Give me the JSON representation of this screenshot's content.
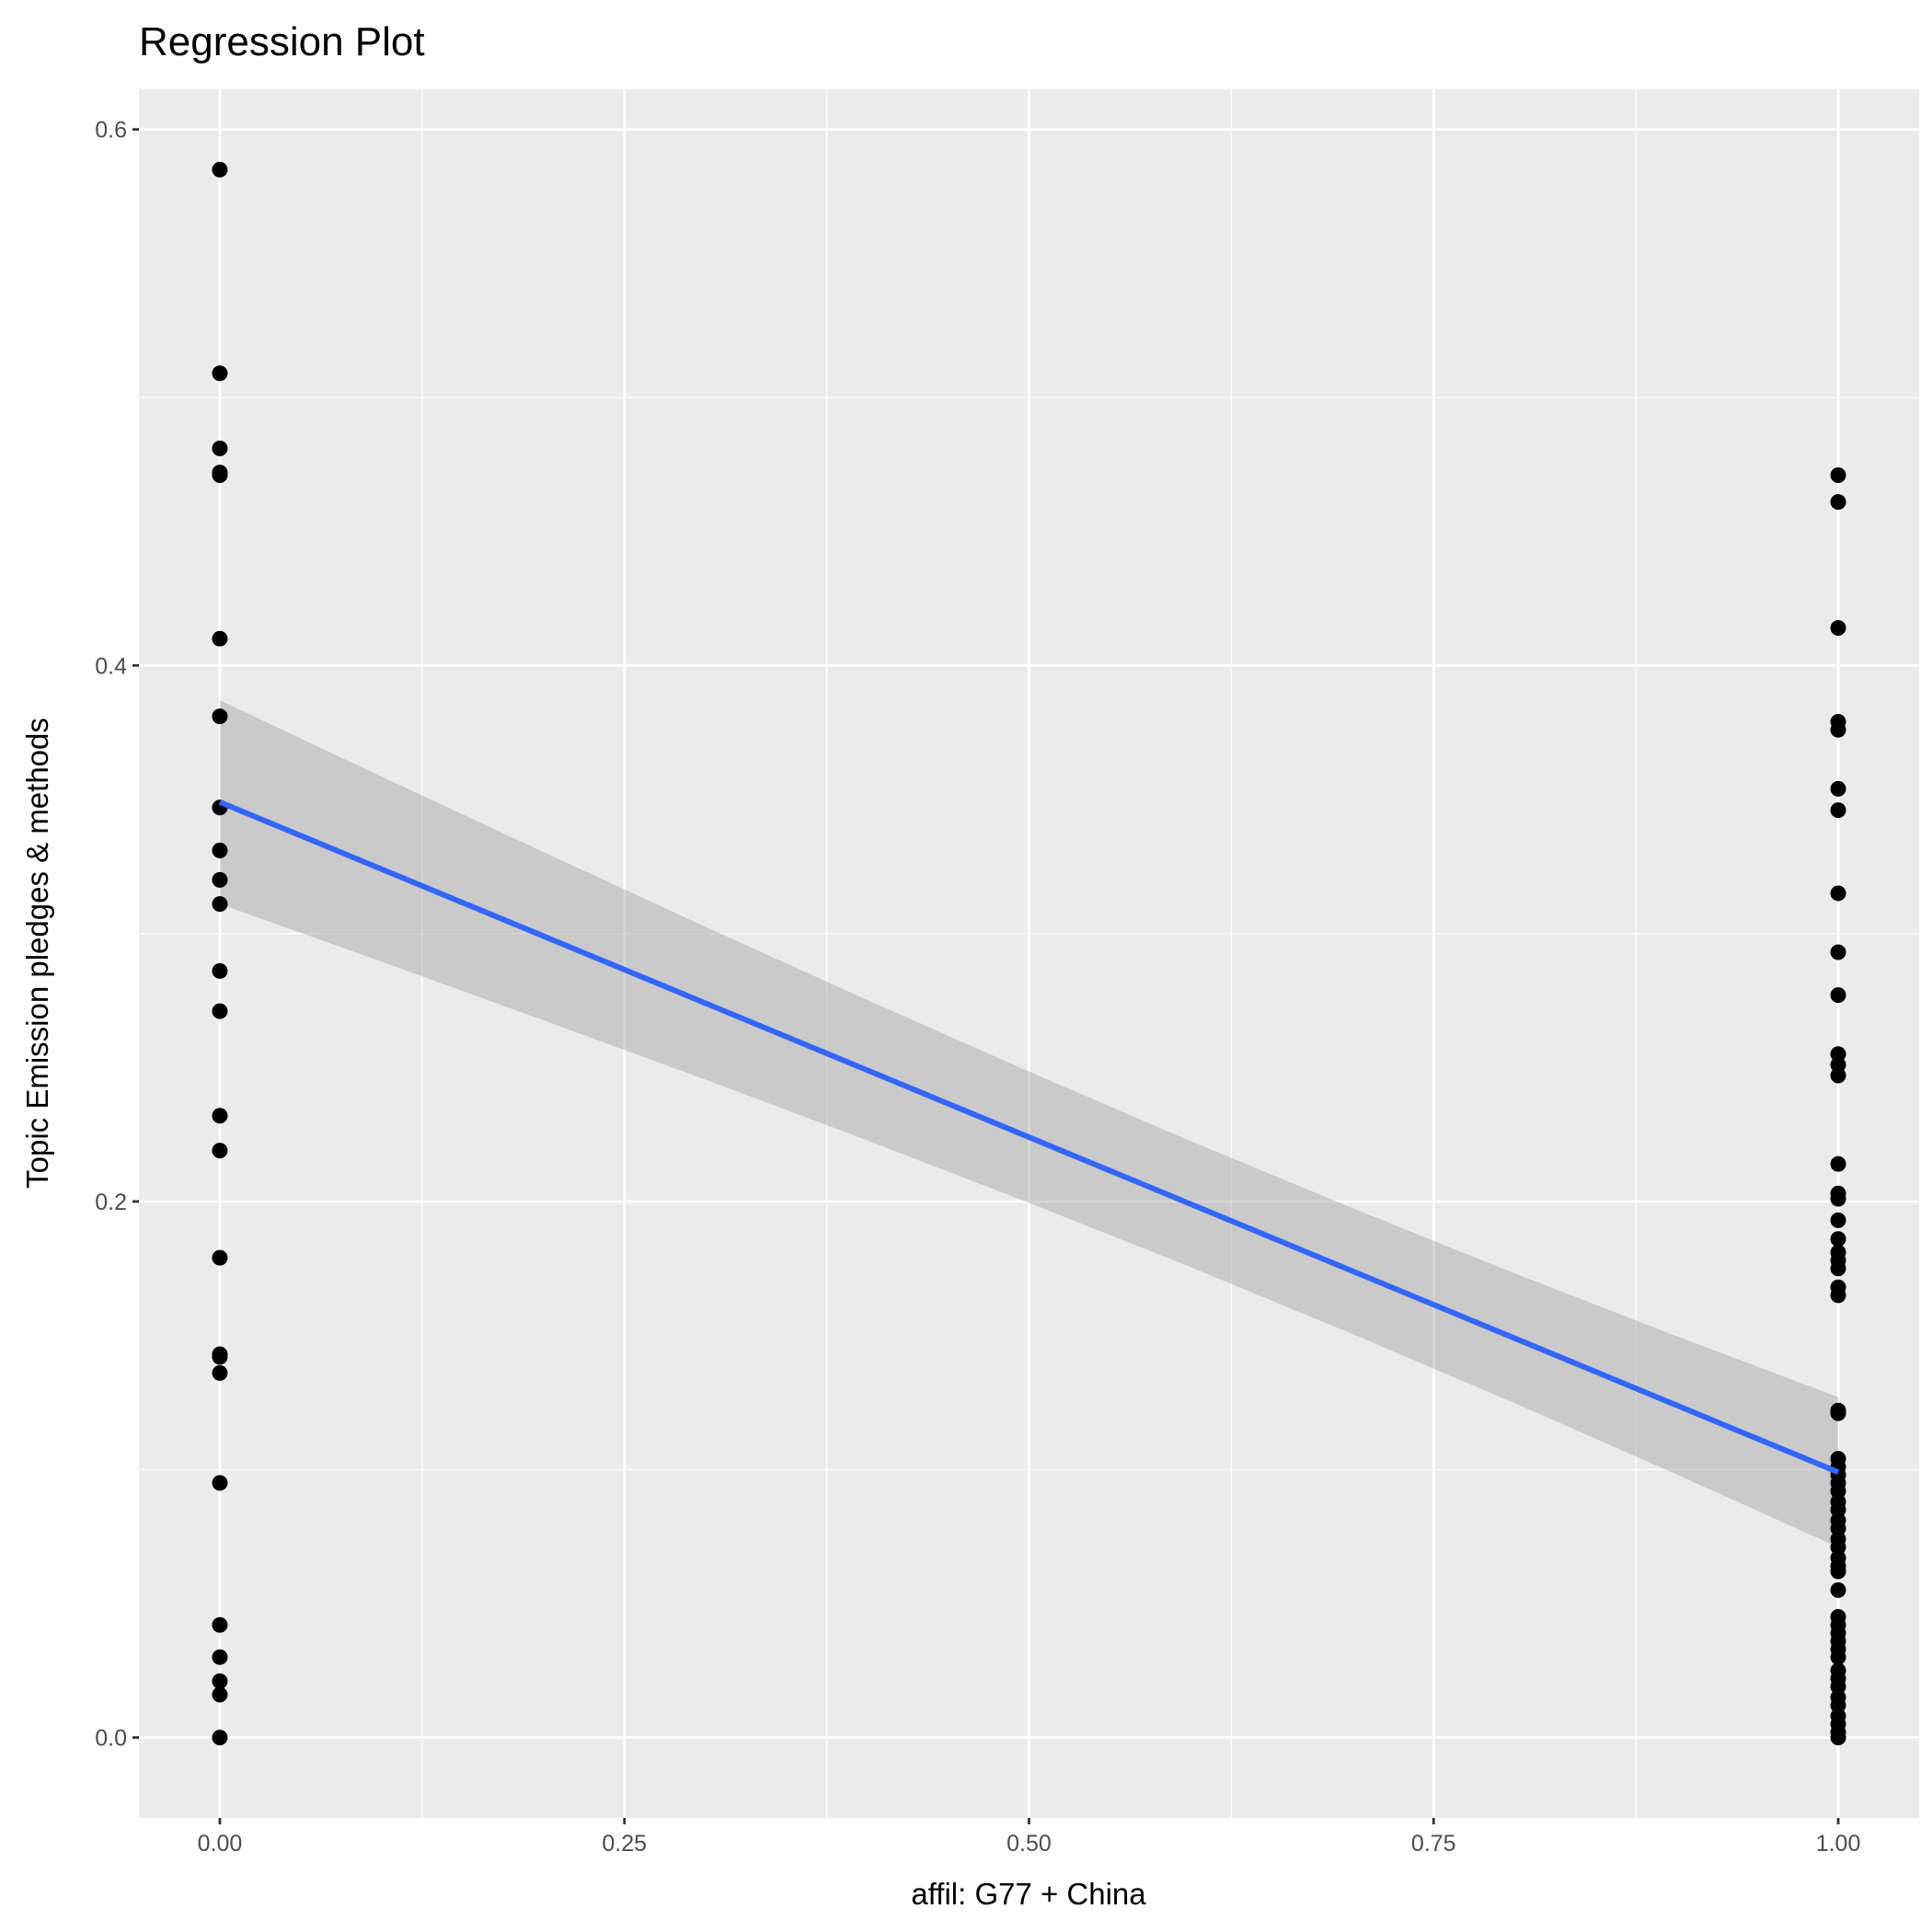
{
  "chart_data": {
    "type": "scatter",
    "title": "Regression Plot",
    "xlabel": "affil: G77 + China",
    "ylabel": "Topic Emission pledges & methods",
    "xlim": [
      -0.05,
      1.05
    ],
    "ylim": [
      -0.03,
      0.615
    ],
    "x_ticks": [
      0,
      0.25,
      0.5,
      0.75,
      1
    ],
    "x_tick_labels": [
      "0.00",
      "0.25",
      "0.50",
      "0.75",
      "1.00"
    ],
    "y_ticks": [
      0,
      0.2,
      0.4,
      0.6
    ],
    "y_tick_labels": [
      "0.0",
      "0.2",
      "0.4",
      "0.6"
    ],
    "grid": true,
    "points": {
      "x0": [
        0.585,
        0.509,
        0.481,
        0.472,
        0.471,
        0.41,
        0.381,
        0.347,
        0.331,
        0.32,
        0.311,
        0.286,
        0.271,
        0.232,
        0.219,
        0.179,
        0.143,
        0.142,
        0.136,
        0.095,
        0.042,
        0.03,
        0.021,
        0.016,
        0.0
      ],
      "x1": [
        0.471,
        0.461,
        0.414,
        0.379,
        0.376,
        0.354,
        0.346,
        0.315,
        0.293,
        0.277,
        0.255,
        0.251,
        0.247,
        0.214,
        0.203,
        0.201,
        0.193,
        0.186,
        0.181,
        0.178,
        0.175,
        0.168,
        0.165,
        0.122,
        0.121,
        0.104,
        0.101,
        0.098,
        0.095,
        0.092,
        0.088,
        0.085,
        0.081,
        0.078,
        0.074,
        0.071,
        0.067,
        0.064,
        0.062,
        0.055,
        0.045,
        0.042,
        0.039,
        0.036,
        0.033,
        0.03,
        0.025,
        0.022,
        0.019,
        0.015,
        0.012,
        0.008,
        0.005,
        0.002,
        0.0
      ]
    },
    "regression": {
      "x": [
        0,
        0.1,
        0.2,
        0.3,
        0.4,
        0.5,
        0.6,
        0.7,
        0.8,
        0.9,
        1.0
      ],
      "fit": [
        0.349,
        0.324,
        0.299,
        0.274,
        0.249,
        0.224,
        0.199,
        0.174,
        0.149,
        0.124,
        0.099
      ],
      "lower": [
        0.311,
        0.2895,
        0.2676,
        0.2455,
        0.2228,
        0.1995,
        0.1755,
        0.1505,
        0.1248,
        0.0982,
        0.071
      ],
      "upper": [
        0.387,
        0.3585,
        0.3304,
        0.3025,
        0.2752,
        0.2485,
        0.2225,
        0.1975,
        0.1732,
        0.1498,
        0.127
      ],
      "line_color": "#3366FF",
      "band_color": "#999999"
    },
    "colors": {
      "panel": "#EBEBEB",
      "grid": "#FFFFFF",
      "point": "#000000"
    }
  }
}
